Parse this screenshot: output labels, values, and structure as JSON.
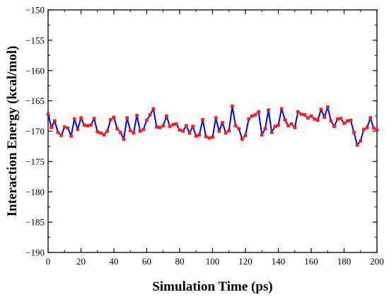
{
  "chart_data": {
    "type": "line",
    "title": "",
    "xlabel": "Simulation Time (ps)",
    "ylabel": "Interaction Energy (kcal/mol)",
    "xlim": [
      0,
      200
    ],
    "ylim": [
      -190,
      -150
    ],
    "xticks": [
      0,
      20,
      40,
      60,
      80,
      100,
      120,
      140,
      160,
      180,
      200
    ],
    "yticks": [
      -190,
      -185,
      -180,
      -175,
      -170,
      -165,
      -160,
      -155,
      -150
    ],
    "xtick_labels": [
      "0",
      "20",
      "40",
      "60",
      "80",
      "100",
      "120",
      "140",
      "160",
      "180",
      "200"
    ],
    "ytick_labels": [
      "−190",
      "−185",
      "−180",
      "−175",
      "−170",
      "−165",
      "−160",
      "−155",
      "−150"
    ],
    "grid": false,
    "line_color": "#0000ff",
    "marker_color": "#ff1a1a",
    "series": [
      {
        "x": [
          0,
          2,
          4,
          6,
          8,
          10,
          12,
          14,
          16,
          18,
          20,
          22,
          24,
          26,
          28,
          30,
          32,
          34,
          36,
          38,
          40,
          42,
          44,
          46,
          48,
          50,
          52,
          54,
          56,
          58,
          60,
          62,
          64,
          66,
          68,
          70,
          72,
          74,
          76,
          78,
          80,
          82,
          84,
          86,
          88,
          90,
          92,
          94,
          96,
          98,
          100,
          102,
          104,
          106,
          108,
          110,
          112,
          114,
          116,
          118,
          120,
          122,
          124,
          126,
          128,
          130,
          132,
          134,
          136,
          138,
          140,
          142,
          144,
          146,
          148,
          150,
          152,
          154,
          156,
          158,
          160,
          162,
          164,
          166,
          168,
          170,
          172,
          174,
          176,
          178,
          180,
          182,
          184,
          186,
          188,
          190,
          192,
          194,
          196,
          198,
          200
        ],
        "values": [
          -167.2,
          -169.4,
          -168.3,
          -170.2,
          -170.7,
          -169.3,
          -169.5,
          -170.8,
          -168.0,
          -169.7,
          -167.8,
          -169.0,
          -169.1,
          -169.0,
          -167.9,
          -170.1,
          -170.3,
          -170.6,
          -170.0,
          -168.1,
          -167.7,
          -169.6,
          -170.2,
          -171.3,
          -167.8,
          -169.9,
          -170.3,
          -167.4,
          -170.0,
          -169.7,
          -168.2,
          -167.3,
          -166.3,
          -169.3,
          -169.4,
          -169.1,
          -167.5,
          -169.2,
          -168.9,
          -168.8,
          -169.8,
          -170.0,
          -169.1,
          -170.3,
          -169.2,
          -170.8,
          -170.6,
          -168.1,
          -170.9,
          -171.1,
          -171.0,
          -167.8,
          -170.0,
          -168.6,
          -170.3,
          -169.9,
          -165.9,
          -169.1,
          -169.6,
          -171.3,
          -170.7,
          -168.0,
          -167.5,
          -167.3,
          -166.8,
          -170.6,
          -169.6,
          -166.5,
          -170.2,
          -169.2,
          -169.0,
          -166.3,
          -168.1,
          -169.1,
          -168.8,
          -169.4,
          -166.8,
          -167.2,
          -167.3,
          -167.8,
          -167.5,
          -168.0,
          -168.2,
          -166.4,
          -167.7,
          -166.0,
          -168.3,
          -169.2,
          -168.0,
          -167.9,
          -168.7,
          -168.3,
          -168.2,
          -170.2,
          -172.3,
          -171.6,
          -169.7,
          -169.4,
          -167.8,
          -169.5,
          -169.8
        ]
      }
    ]
  }
}
